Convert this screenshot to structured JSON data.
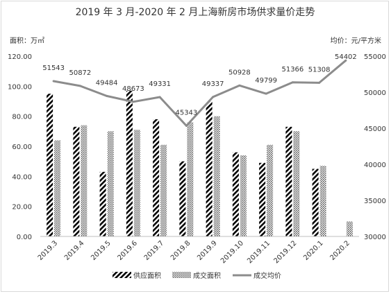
{
  "chart_data": {
    "type": "bar",
    "title": "2019 年 3 月-2020 年 2 月上海新房市场供求量价走势",
    "y_left_unit": "面积：万㎡",
    "y_right_unit": "均价：元/平方米",
    "categories": [
      "2019.3",
      "2019.4",
      "2019.5",
      "2019.6",
      "2019.7",
      "2019.8",
      "2019.9",
      "2019.10",
      "2019.11",
      "2019.12",
      "2020.1",
      "2020.2"
    ],
    "y_left_ticks": [
      "0.00",
      "20.00",
      "40.00",
      "60.00",
      "80.00",
      "100.00",
      "120.00"
    ],
    "y_right_ticks": [
      "30000",
      "35000",
      "40000",
      "45000",
      "50000",
      "55000"
    ],
    "ylim_left": [
      0,
      120
    ],
    "ylim_right": [
      30000,
      55000
    ],
    "grid": false,
    "legend_position": "bottom",
    "series": [
      {
        "name": "供应面积",
        "kind": "bar",
        "axis": "left",
        "pattern": "diagonal-stripes",
        "color": "#000000",
        "values": [
          95,
          73,
          43,
          97,
          78,
          50,
          90,
          56,
          49,
          73,
          45,
          0
        ]
      },
      {
        "name": "成交面积",
        "kind": "bar",
        "axis": "left",
        "pattern": "dots",
        "color": "#555555",
        "values": [
          64,
          74,
          70,
          71,
          61,
          76,
          80,
          54,
          61,
          70,
          47,
          10
        ]
      },
      {
        "name": "成交均价",
        "kind": "line",
        "axis": "right",
        "color": "#8c8c8c",
        "values": [
          51543,
          50872,
          49484,
          48673,
          49331,
          45343,
          49337,
          50928,
          49799,
          51366,
          51308,
          54402
        ],
        "labels": [
          "51543",
          "50872",
          "49484",
          "48673",
          "49331",
          "45343",
          "49337",
          "50928",
          "49799",
          "51366",
          "51308",
          "54402"
        ]
      }
    ]
  }
}
